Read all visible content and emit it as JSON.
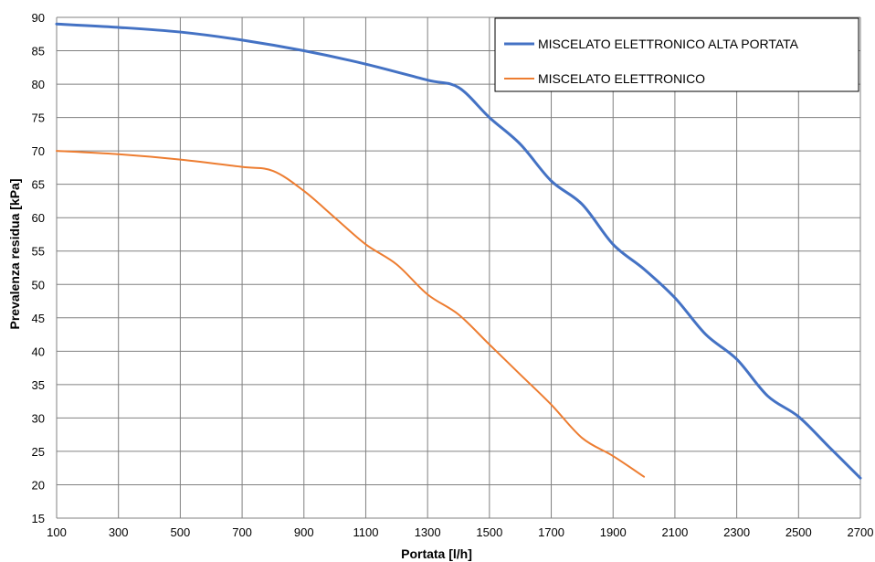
{
  "chart_data": {
    "type": "line",
    "title": "",
    "xlabel": "Portata [l/h]",
    "ylabel": "Prevalenza residua [kPa]",
    "xlim": [
      100,
      2700
    ],
    "ylim": [
      15,
      90
    ],
    "x_ticks": [
      100,
      300,
      500,
      700,
      900,
      1100,
      1300,
      1500,
      1700,
      1900,
      2100,
      2300,
      2500,
      2700
    ],
    "y_ticks": [
      15,
      20,
      25,
      30,
      35,
      40,
      45,
      50,
      55,
      60,
      65,
      70,
      75,
      80,
      85,
      90
    ],
    "grid": true,
    "legend_position": "top-right",
    "series": [
      {
        "name": "MISCELATO ELETTRONICO ALTA PORTATA",
        "color": "#4472C4",
        "points": [
          [
            100,
            89
          ],
          [
            300,
            88.5
          ],
          [
            500,
            87.8
          ],
          [
            700,
            86.6
          ],
          [
            900,
            85
          ],
          [
            1100,
            83
          ],
          [
            1300,
            80.6
          ],
          [
            1400,
            79.5
          ],
          [
            1500,
            75
          ],
          [
            1600,
            71
          ],
          [
            1700,
            65.5
          ],
          [
            1800,
            62
          ],
          [
            1900,
            56
          ],
          [
            2000,
            52.3
          ],
          [
            2100,
            48
          ],
          [
            2200,
            42.5
          ],
          [
            2300,
            38.8
          ],
          [
            2400,
            33.3
          ],
          [
            2500,
            30.2
          ],
          [
            2600,
            25.6
          ],
          [
            2700,
            21
          ]
        ]
      },
      {
        "name": "MISCELATO ELETTRONICO",
        "color": "#ED7D31",
        "points": [
          [
            100,
            70
          ],
          [
            300,
            69.5
          ],
          [
            500,
            68.7
          ],
          [
            700,
            67.6
          ],
          [
            800,
            67
          ],
          [
            900,
            64
          ],
          [
            1000,
            60
          ],
          [
            1100,
            56
          ],
          [
            1200,
            53
          ],
          [
            1300,
            48.5
          ],
          [
            1400,
            45.5
          ],
          [
            1500,
            41
          ],
          [
            1600,
            36.5
          ],
          [
            1700,
            32
          ],
          [
            1800,
            27
          ],
          [
            1900,
            24.3
          ],
          [
            2000,
            21.2
          ]
        ]
      }
    ]
  }
}
